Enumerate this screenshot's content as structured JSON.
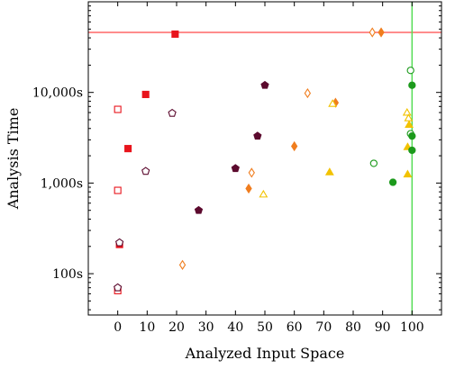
{
  "chart_data": {
    "type": "scatter",
    "xlabel": "Analyzed Input Space",
    "ylabel": "Analysis Time",
    "x_ticks": [
      0,
      10,
      20,
      30,
      40,
      50,
      60,
      70,
      80,
      90,
      100
    ],
    "y_ticks": [
      {
        "value": 100,
        "label": "100s"
      },
      {
        "value": 1000,
        "label": "1,000s"
      },
      {
        "value": 10000,
        "label": "10,000s"
      }
    ],
    "xlim": [
      -10,
      110
    ],
    "ylim": [
      35,
      100000
    ],
    "y_scale": "log",
    "grid": false,
    "reference_lines": [
      {
        "orientation": "horizontal",
        "value": 46000,
        "color": "#ff6666"
      },
      {
        "orientation": "vertical",
        "value": 100,
        "color": "#55dd55"
      }
    ],
    "series": [
      {
        "marker": "square",
        "color": "#e8141c",
        "points": [
          {
            "x": 0,
            "y": 6500,
            "filled": false
          },
          {
            "x": 0,
            "y": 830,
            "filled": false
          },
          {
            "x": 0.6,
            "y": 210,
            "filled": true
          },
          {
            "x": 0,
            "y": 65,
            "filled": false
          },
          {
            "x": 3.5,
            "y": 2400,
            "filled": true
          },
          {
            "x": 9.5,
            "y": 9500,
            "filled": true
          },
          {
            "x": 19.5,
            "y": 44000,
            "filled": true
          }
        ]
      },
      {
        "marker": "pentagon",
        "color": "#5c0a2e",
        "points": [
          {
            "x": 0.6,
            "y": 220,
            "filled": false
          },
          {
            "x": 0,
            "y": 70,
            "filled": false
          },
          {
            "x": 9.5,
            "y": 1350,
            "filled": false
          },
          {
            "x": 18.5,
            "y": 5900,
            "filled": false
          },
          {
            "x": 27.5,
            "y": 500,
            "filled": true
          },
          {
            "x": 40,
            "y": 1450,
            "filled": true
          },
          {
            "x": 47.5,
            "y": 3300,
            "filled": true
          },
          {
            "x": 50,
            "y": 12000,
            "filled": true
          }
        ]
      },
      {
        "marker": "diamond",
        "color": "#f07d1e",
        "points": [
          {
            "x": 22,
            "y": 125,
            "filled": false
          },
          {
            "x": 44.5,
            "y": 870,
            "filled": true
          },
          {
            "x": 45.5,
            "y": 1300,
            "filled": false
          },
          {
            "x": 60,
            "y": 2550,
            "filled": true
          },
          {
            "x": 64.5,
            "y": 9800,
            "filled": false
          },
          {
            "x": 74,
            "y": 7700,
            "filled": true
          },
          {
            "x": 86.5,
            "y": 46000,
            "filled": false
          },
          {
            "x": 89.5,
            "y": 46000,
            "filled": true
          }
        ]
      },
      {
        "marker": "triangle",
        "color": "#f2c200",
        "points": [
          {
            "x": 49.5,
            "y": 750,
            "filled": false
          },
          {
            "x": 72,
            "y": 1320,
            "filled": true
          },
          {
            "x": 73,
            "y": 7500,
            "filled": false
          },
          {
            "x": 98.3,
            "y": 6000,
            "filled": false
          },
          {
            "x": 98.8,
            "y": 5200,
            "filled": false
          },
          {
            "x": 99,
            "y": 4400,
            "filled": true
          },
          {
            "x": 98.5,
            "y": 2500,
            "filled": true
          },
          {
            "x": 98.5,
            "y": 1250,
            "filled": true
          }
        ]
      },
      {
        "marker": "circle",
        "color": "#1c9a1c",
        "points": [
          {
            "x": 87,
            "y": 1650,
            "filled": false
          },
          {
            "x": 93.5,
            "y": 1020,
            "filled": true
          },
          {
            "x": 99.5,
            "y": 17500,
            "filled": false
          },
          {
            "x": 100,
            "y": 12000,
            "filled": true
          },
          {
            "x": 99.5,
            "y": 3500,
            "filled": false
          },
          {
            "x": 100,
            "y": 3300,
            "filled": true
          },
          {
            "x": 100,
            "y": 2300,
            "filled": true
          }
        ]
      }
    ]
  }
}
